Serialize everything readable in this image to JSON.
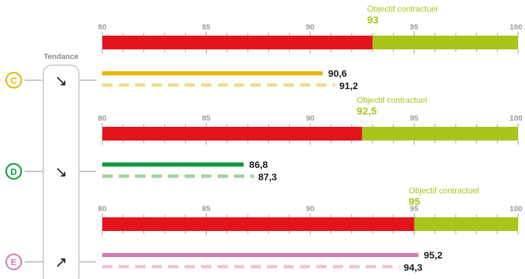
{
  "tendance_label": "Tendance",
  "objective_label": "Objectif contractuel",
  "chart_data": {
    "type": "bar",
    "xlim": [
      80,
      100
    ],
    "ticks": [
      "80",
      "85",
      "90",
      "95",
      "100"
    ],
    "panels": [
      {
        "badge": "C",
        "color": "#e2b800",
        "dashed_color": "#f0dc8a",
        "objective": 93,
        "objective_text": "93",
        "value": 90.6,
        "value_text": "90,6",
        "previous": 91.2,
        "previous_text": "91,2",
        "trend": "down",
        "trend_glyph": "↘"
      },
      {
        "badge": "D",
        "color": "#0a9b3c",
        "dashed_color": "#9fd3a6",
        "objective": 92.5,
        "objective_text": "92,5",
        "value": 86.8,
        "value_text": "86,8",
        "previous": 87.3,
        "previous_text": "87,3",
        "trend": "down",
        "trend_glyph": "↘"
      },
      {
        "badge": "E",
        "color": "#d47ab1",
        "dashed_color": "#eec2dd",
        "objective": 95,
        "objective_text": "95",
        "value": 95.2,
        "value_text": "95,2",
        "previous": 94.3,
        "previous_text": "94,3",
        "trend": "up",
        "trend_glyph": "↗"
      }
    ],
    "colors": {
      "below": "#e3141b",
      "above": "#a9c41a",
      "tick": "#9a9a9a"
    }
  }
}
